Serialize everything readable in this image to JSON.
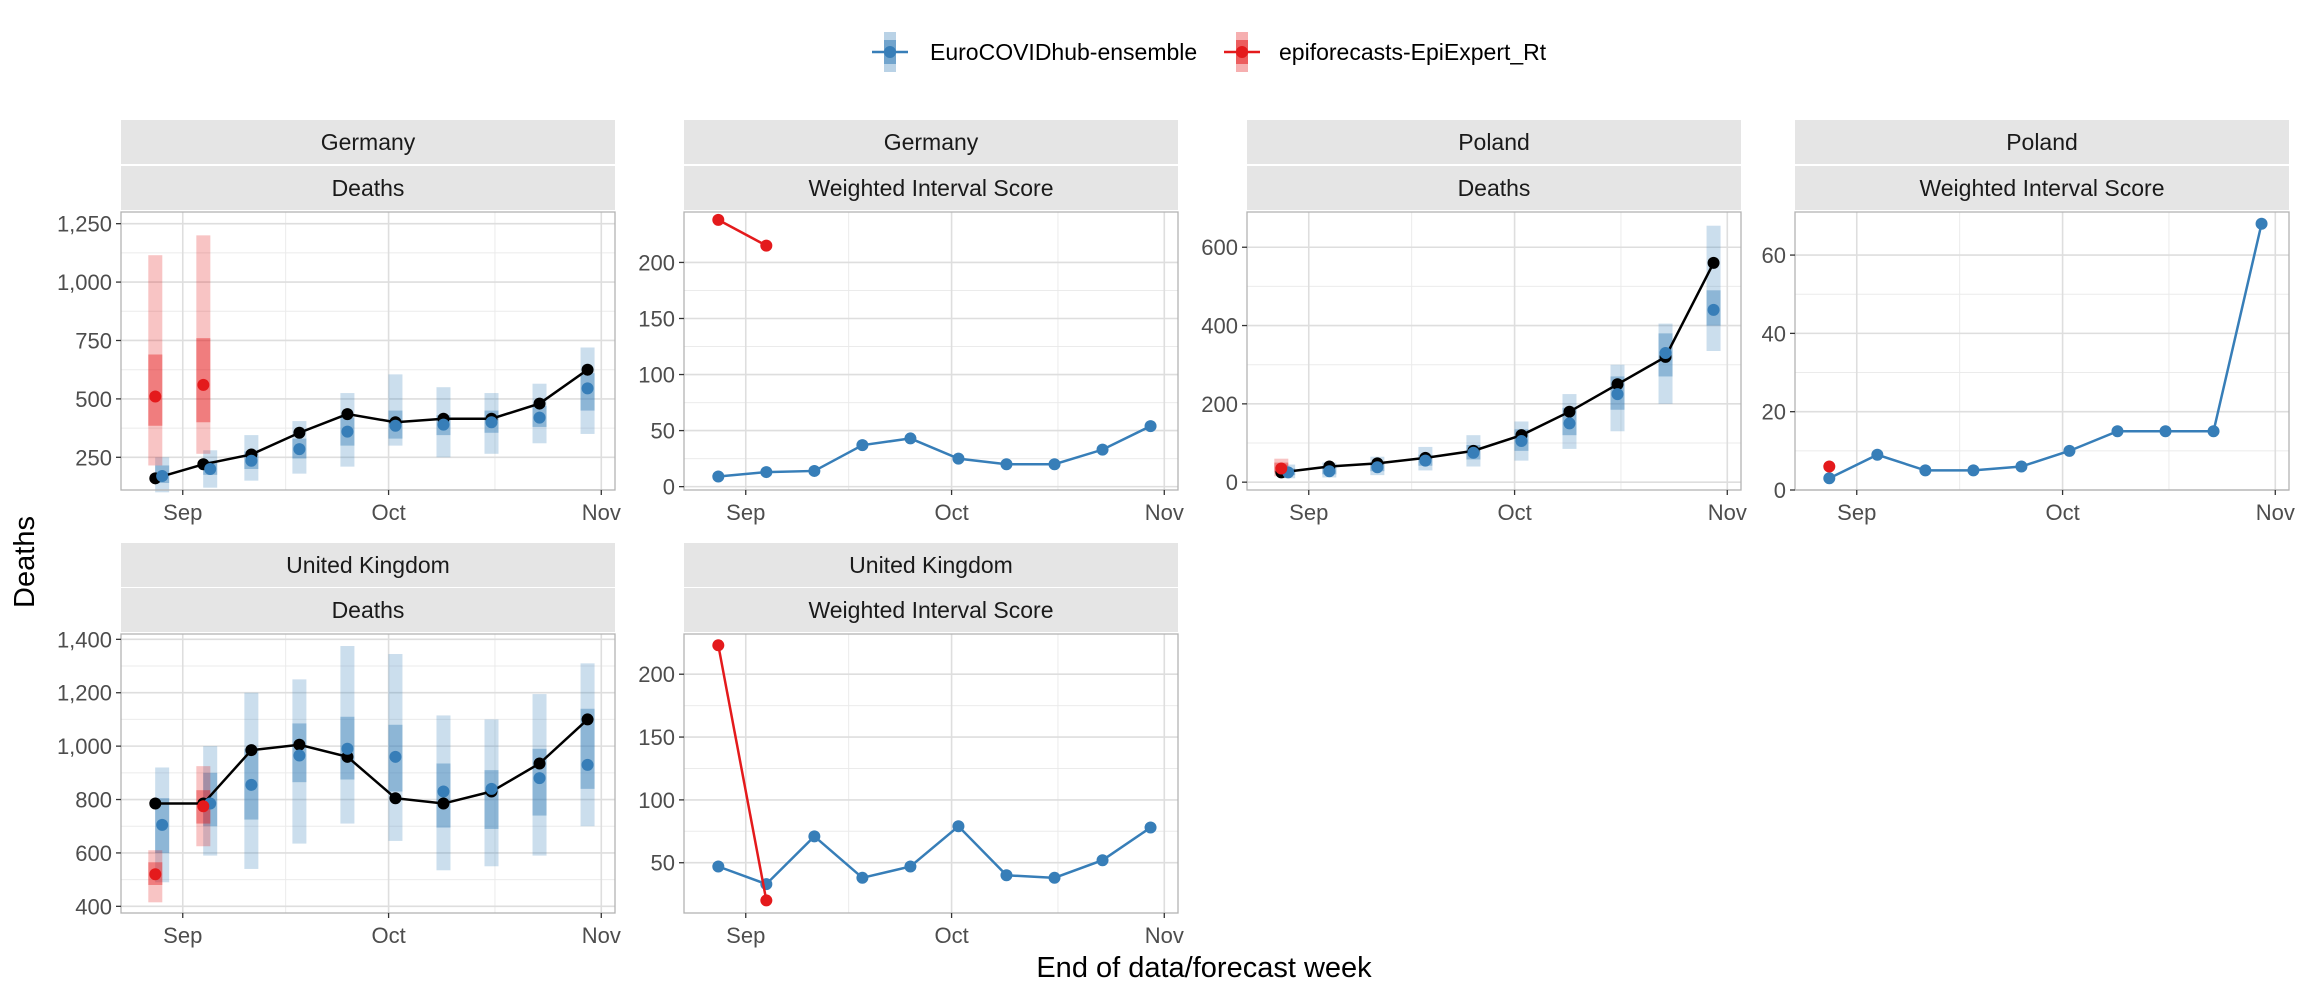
{
  "figure": {
    "ylabel": "Deaths",
    "xlabel": "End of data/forecast week"
  },
  "legend": [
    {
      "name": "EuroCOVIDhub-ensemble",
      "color": "#377eb8"
    },
    {
      "name": "epiforecasts-EpiExpert_Rt",
      "color": "#e41a1c"
    }
  ],
  "colors": {
    "observed": "#000000",
    "ensemble": "#377eb8",
    "epiexpert": "#e41a1c",
    "strip_bg": "#e5e5e5",
    "grid": "#ebebeb"
  },
  "chart_data": [
    {
      "type": "line",
      "panel": {
        "row": 0,
        "col": 0
      },
      "strip": [
        "Germany",
        "Deaths"
      ],
      "x_axis": {
        "range": [
          "2021-08-23",
          "2021-11-03"
        ],
        "ticks": [
          "2021-09-01",
          "2021-10-01",
          "2021-11-01"
        ],
        "tick_labels": [
          "Sep",
          "Oct",
          "Nov"
        ]
      },
      "y_axis": {
        "range": [
          110,
          1300
        ],
        "ticks": [
          250,
          500,
          750,
          1000,
          1250
        ],
        "tick_labels": [
          "250",
          "500",
          "750",
          "1,000",
          "1,250"
        ]
      },
      "observed": {
        "x": [
          "2021-08-28",
          "2021-09-04",
          "2021-09-11",
          "2021-09-18",
          "2021-09-25",
          "2021-10-02",
          "2021-10-09",
          "2021-10-16",
          "2021-10-23",
          "2021-10-30"
        ],
        "y": [
          160,
          220,
          262,
          355,
          435,
          400,
          415,
          415,
          480,
          625
        ]
      },
      "series": [
        {
          "name": "EuroCOVIDhub-ensemble",
          "x": [
            "2021-08-29",
            "2021-09-05",
            "2021-09-11",
            "2021-09-18",
            "2021-09-25",
            "2021-10-02",
            "2021-10-09",
            "2021-10-16",
            "2021-10-23",
            "2021-10-30"
          ],
          "median": [
            170,
            200,
            235,
            285,
            360,
            385,
            390,
            400,
            420,
            545
          ],
          "inner": [
            [
              140,
              215
            ],
            [
              175,
              235
            ],
            [
              200,
              275
            ],
            [
              245,
              330
            ],
            [
              300,
              420
            ],
            [
              330,
              450
            ],
            [
              345,
              430
            ],
            [
              355,
              450
            ],
            [
              380,
              470
            ],
            [
              450,
              610
            ]
          ],
          "outer": [
            [
              100,
              250
            ],
            [
              120,
              280
            ],
            [
              150,
              345
            ],
            [
              180,
              405
            ],
            [
              210,
              525
            ],
            [
              300,
              605
            ],
            [
              250,
              550
            ],
            [
              265,
              525
            ],
            [
              310,
              565
            ],
            [
              350,
              720
            ]
          ]
        },
        {
          "name": "epiforecasts-EpiExpert_Rt",
          "x": [
            "2021-08-28",
            "2021-09-04"
          ],
          "median": [
            510,
            560
          ],
          "inner": [
            [
              385,
              690
            ],
            [
              400,
              760
            ]
          ],
          "outer": [
            [
              215,
              1115
            ],
            [
              265,
              1200
            ]
          ]
        }
      ]
    },
    {
      "type": "line",
      "panel": {
        "row": 0,
        "col": 1
      },
      "strip": [
        "Germany",
        "Weighted Interval Score"
      ],
      "x_axis": {
        "range": [
          "2021-08-23",
          "2021-11-03"
        ],
        "ticks": [
          "2021-09-01",
          "2021-10-01",
          "2021-11-01"
        ],
        "tick_labels": [
          "Sep",
          "Oct",
          "Nov"
        ]
      },
      "y_axis": {
        "range": [
          -3,
          245
        ],
        "ticks": [
          0,
          50,
          100,
          150,
          200
        ],
        "tick_labels": [
          "0",
          "50",
          "100",
          "150",
          "200"
        ]
      },
      "series": [
        {
          "name": "EuroCOVIDhub-ensemble",
          "x": [
            "2021-08-28",
            "2021-09-04",
            "2021-09-11",
            "2021-09-18",
            "2021-09-25",
            "2021-10-02",
            "2021-10-09",
            "2021-10-16",
            "2021-10-23",
            "2021-10-30"
          ],
          "values": [
            9,
            13,
            14,
            37,
            43,
            25,
            20,
            20,
            33,
            54
          ]
        },
        {
          "name": "epiforecasts-EpiExpert_Rt",
          "x": [
            "2021-08-28",
            "2021-09-04"
          ],
          "values": [
            238,
            215
          ]
        }
      ]
    },
    {
      "type": "line",
      "panel": {
        "row": 0,
        "col": 2
      },
      "strip": [
        "Poland",
        "Deaths"
      ],
      "x_axis": {
        "range": [
          "2021-08-23",
          "2021-11-03"
        ],
        "ticks": [
          "2021-09-01",
          "2021-10-01",
          "2021-11-01"
        ],
        "tick_labels": [
          "Sep",
          "Oct",
          "Nov"
        ]
      },
      "y_axis": {
        "range": [
          -20,
          690
        ],
        "ticks": [
          0,
          200,
          400,
          600
        ],
        "tick_labels": [
          "0",
          "200",
          "400",
          "600"
        ]
      },
      "observed": {
        "x": [
          "2021-08-28",
          "2021-09-04",
          "2021-09-11",
          "2021-09-18",
          "2021-09-25",
          "2021-10-02",
          "2021-10-09",
          "2021-10-16",
          "2021-10-23",
          "2021-10-30"
        ],
        "y": [
          25,
          40,
          48,
          62,
          80,
          120,
          180,
          250,
          320,
          560
        ]
      },
      "series": [
        {
          "name": "EuroCOVIDhub-ensemble",
          "x": [
            "2021-08-29",
            "2021-09-04",
            "2021-09-11",
            "2021-09-18",
            "2021-09-25",
            "2021-10-02",
            "2021-10-09",
            "2021-10-16",
            "2021-10-23",
            "2021-10-30"
          ],
          "median": [
            25,
            28,
            38,
            55,
            75,
            105,
            150,
            225,
            330,
            440
          ],
          "inner": [
            [
              18,
              35
            ],
            [
              20,
              38
            ],
            [
              28,
              50
            ],
            [
              42,
              70
            ],
            [
              58,
              95
            ],
            [
              80,
              135
            ],
            [
              120,
              190
            ],
            [
              185,
              270
            ],
            [
              270,
              380
            ],
            [
              400,
              490
            ]
          ],
          "outer": [
            [
              10,
              45
            ],
            [
              12,
              50
            ],
            [
              18,
              65
            ],
            [
              30,
              90
            ],
            [
              40,
              120
            ],
            [
              55,
              155
            ],
            [
              85,
              225
            ],
            [
              130,
              300
            ],
            [
              200,
              405
            ],
            [
              335,
              655
            ]
          ]
        },
        {
          "name": "epiforecasts-EpiExpert_Rt",
          "x": [
            "2021-08-28"
          ],
          "median": [
            35
          ],
          "inner": [
            [
              25,
              50
            ]
          ],
          "outer": [
            [
              15,
              60
            ]
          ]
        }
      ]
    },
    {
      "type": "line",
      "panel": {
        "row": 0,
        "col": 3
      },
      "strip": [
        "Poland",
        "Weighted Interval Score"
      ],
      "x_axis": {
        "range": [
          "2021-08-23",
          "2021-11-03"
        ],
        "ticks": [
          "2021-09-01",
          "2021-10-01",
          "2021-11-01"
        ],
        "tick_labels": [
          "Sep",
          "Oct",
          "Nov"
        ]
      },
      "y_axis": {
        "range": [
          0,
          71
        ],
        "ticks": [
          0,
          20,
          40,
          60
        ],
        "tick_labels": [
          "0",
          "20",
          "40",
          "60"
        ]
      },
      "series": [
        {
          "name": "EuroCOVIDhub-ensemble",
          "x": [
            "2021-08-28",
            "2021-09-04",
            "2021-09-11",
            "2021-09-18",
            "2021-09-25",
            "2021-10-02",
            "2021-10-09",
            "2021-10-16",
            "2021-10-23",
            "2021-10-30"
          ],
          "values": [
            3,
            9,
            5,
            5,
            6,
            10,
            15,
            15,
            15,
            68
          ]
        },
        {
          "name": "epiforecasts-EpiExpert_Rt",
          "x": [
            "2021-08-28"
          ],
          "values": [
            6
          ]
        }
      ]
    },
    {
      "type": "line",
      "panel": {
        "row": 1,
        "col": 0
      },
      "strip": [
        "United Kingdom",
        "Deaths"
      ],
      "x_axis": {
        "range": [
          "2021-08-23",
          "2021-11-03"
        ],
        "ticks": [
          "2021-09-01",
          "2021-10-01",
          "2021-11-01"
        ],
        "tick_labels": [
          "Sep",
          "Oct",
          "Nov"
        ]
      },
      "y_axis": {
        "range": [
          375,
          1420
        ],
        "ticks": [
          400,
          600,
          800,
          1000,
          1200,
          1400
        ],
        "tick_labels": [
          "400",
          "600",
          "800",
          "1,000",
          "1,200",
          "1,400"
        ]
      },
      "observed": {
        "x": [
          "2021-08-28",
          "2021-09-04",
          "2021-09-11",
          "2021-09-18",
          "2021-09-25",
          "2021-10-02",
          "2021-10-09",
          "2021-10-16",
          "2021-10-23",
          "2021-10-30"
        ],
        "y": [
          785,
          785,
          985,
          1005,
          960,
          805,
          785,
          830,
          935,
          1100
        ]
      },
      "series": [
        {
          "name": "EuroCOVIDhub-ensemble",
          "x": [
            "2021-08-29",
            "2021-09-05",
            "2021-09-11",
            "2021-09-18",
            "2021-09-25",
            "2021-10-02",
            "2021-10-09",
            "2021-10-16",
            "2021-10-23",
            "2021-10-30"
          ],
          "median": [
            705,
            785,
            855,
            965,
            990,
            960,
            830,
            840,
            880,
            930
          ],
          "inner": [
            [
              600,
              805
            ],
            [
              700,
              900
            ],
            [
              725,
              990
            ],
            [
              865,
              1085
            ],
            [
              875,
              1110
            ],
            [
              830,
              1080
            ],
            [
              695,
              935
            ],
            [
              690,
              910
            ],
            [
              740,
              990
            ],
            [
              840,
              1140
            ]
          ],
          "outer": [
            [
              490,
              920
            ],
            [
              590,
              1000
            ],
            [
              540,
              1200
            ],
            [
              635,
              1250
            ],
            [
              710,
              1375
            ],
            [
              645,
              1345
            ],
            [
              535,
              1115
            ],
            [
              550,
              1100
            ],
            [
              590,
              1195
            ],
            [
              700,
              1310
            ]
          ]
        },
        {
          "name": "epiforecasts-EpiExpert_Rt",
          "x": [
            "2021-08-28",
            "2021-09-04"
          ],
          "median": [
            520,
            775
          ],
          "inner": [
            [
              480,
              565
            ],
            [
              710,
              835
            ]
          ],
          "outer": [
            [
              415,
              610
            ],
            [
              625,
              925
            ]
          ]
        }
      ]
    },
    {
      "type": "line",
      "panel": {
        "row": 1,
        "col": 1
      },
      "strip": [
        "United Kingdom",
        "Weighted Interval Score"
      ],
      "x_axis": {
        "range": [
          "2021-08-23",
          "2021-11-03"
        ],
        "ticks": [
          "2021-09-01",
          "2021-10-01",
          "2021-11-01"
        ],
        "tick_labels": [
          "Sep",
          "Oct",
          "Nov"
        ]
      },
      "y_axis": {
        "range": [
          10,
          232
        ],
        "ticks": [
          50,
          100,
          150,
          200
        ],
        "tick_labels": [
          "50",
          "100",
          "150",
          "200"
        ]
      },
      "series": [
        {
          "name": "EuroCOVIDhub-ensemble",
          "x": [
            "2021-08-28",
            "2021-09-04",
            "2021-09-11",
            "2021-09-18",
            "2021-09-25",
            "2021-10-02",
            "2021-10-09",
            "2021-10-16",
            "2021-10-23",
            "2021-10-30"
          ],
          "values": [
            47,
            33,
            71,
            38,
            47,
            79,
            40,
            38,
            52,
            78
          ]
        },
        {
          "name": "epiforecasts-EpiExpert_Rt",
          "x": [
            "2021-08-28",
            "2021-09-04"
          ],
          "values": [
            223,
            20
          ]
        }
      ]
    }
  ]
}
